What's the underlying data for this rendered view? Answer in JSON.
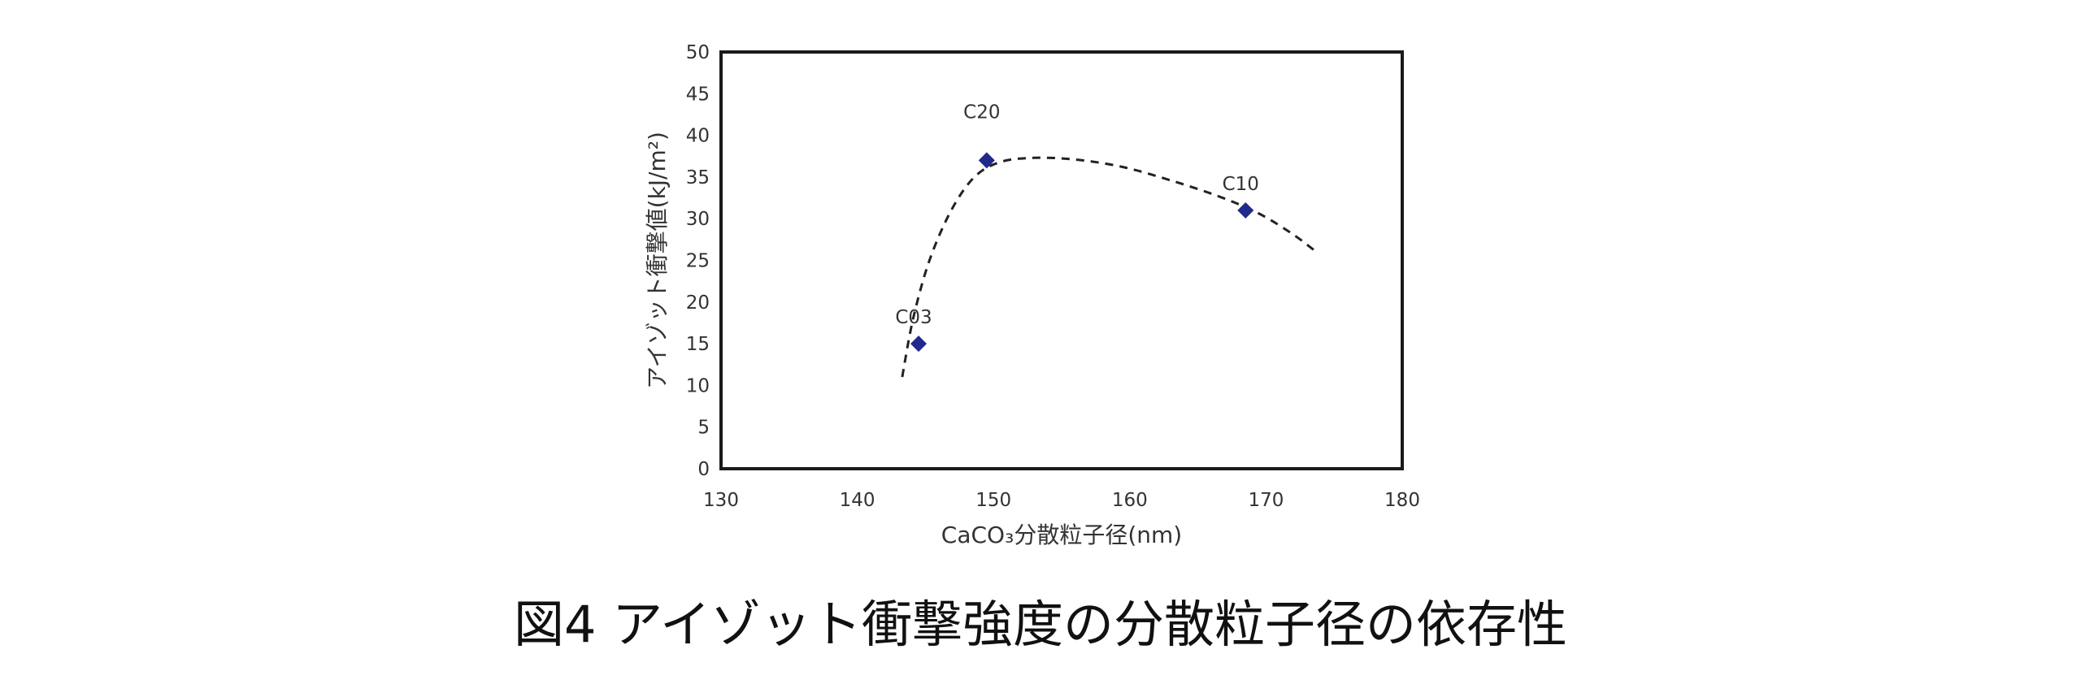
{
  "chart_data": {
    "type": "scatter",
    "title": "",
    "xlabel": "CaCO₃分散粒子径(nm)",
    "ylabel": "アイゾット衝撃値(kJ/m²)",
    "xlim": [
      130,
      180
    ],
    "ylim": [
      0,
      50
    ],
    "xticks": [
      130,
      140,
      150,
      160,
      170,
      180
    ],
    "yticks": [
      0,
      5,
      10,
      15,
      20,
      25,
      30,
      35,
      40,
      45,
      50
    ],
    "grid": false,
    "legend": "none",
    "marker_color": "#1f2a8c",
    "points": [
      {
        "label": "C03",
        "x": 144.5,
        "y": 15
      },
      {
        "label": "C20",
        "x": 149.5,
        "y": 37
      },
      {
        "label": "C10",
        "x": 168.5,
        "y": 31
      }
    ],
    "trend_line": {
      "style": "dashed",
      "points": [
        [
          143.3,
          11
        ],
        [
          144.1,
          18
        ],
        [
          145.3,
          25
        ],
        [
          146.9,
          31
        ],
        [
          148.6,
          35
        ],
        [
          150.5,
          36.8
        ],
        [
          153,
          37.3
        ],
        [
          156,
          37.1
        ],
        [
          159.5,
          36.2
        ],
        [
          163,
          34.6
        ],
        [
          166.5,
          32.7
        ],
        [
          169.5,
          30.6
        ],
        [
          172,
          28.1
        ],
        [
          173.7,
          26
        ]
      ]
    }
  },
  "caption": "図4  アイゾット衝撃強度の分散粒子径の依存性"
}
